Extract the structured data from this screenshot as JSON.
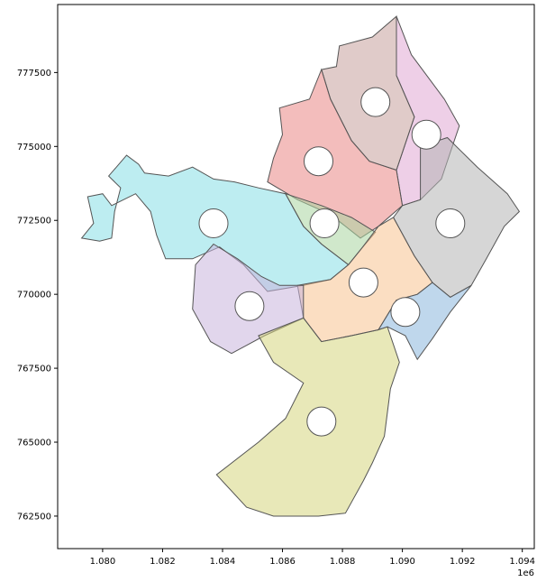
{
  "chart_data": {
    "type": "map",
    "x_axis": {
      "ticks": [
        1.08,
        1.082,
        1.084,
        1.086,
        1.088,
        1.09,
        1.092,
        1.094
      ],
      "tick_labels": [
        "1.080",
        "1.082",
        "1.084",
        "1.086",
        "1.088",
        "1.090",
        "1.092",
        "1.094"
      ],
      "range": [
        1.0785,
        1.0944
      ],
      "offset_label": "1e6"
    },
    "y_axis": {
      "ticks": [
        762500,
        765000,
        767500,
        770000,
        772500,
        775000,
        777500
      ],
      "tick_labels": [
        "762500",
        "765000",
        "767500",
        "770000",
        "772500",
        "775000",
        "777500"
      ],
      "range": [
        761400,
        779800
      ]
    },
    "grid": false,
    "regions": [
      {
        "color": "#87dfe6",
        "marker": [
          1083700,
          772400
        ],
        "polygon": [
          [
            1079500,
            773300
          ],
          [
            1079700,
            772400
          ],
          [
            1079300,
            771900
          ],
          [
            1079900,
            771800
          ],
          [
            1080300,
            771900
          ],
          [
            1080400,
            772800
          ],
          [
            1080600,
            773600
          ],
          [
            1080200,
            774000
          ],
          [
            1080800,
            774700
          ],
          [
            1081200,
            774400
          ],
          [
            1081400,
            774100
          ],
          [
            1082200,
            774000
          ],
          [
            1083000,
            774300
          ],
          [
            1083700,
            773900
          ],
          [
            1084400,
            773800
          ],
          [
            1085200,
            773600
          ],
          [
            1086100,
            773400
          ],
          [
            1086700,
            772300
          ],
          [
            1087300,
            771700
          ],
          [
            1088200,
            771000
          ],
          [
            1087600,
            770500
          ],
          [
            1086700,
            770300
          ],
          [
            1085500,
            770100
          ],
          [
            1084700,
            771000
          ],
          [
            1083900,
            771600
          ],
          [
            1083000,
            771200
          ],
          [
            1082100,
            771200
          ],
          [
            1081800,
            772000
          ],
          [
            1081600,
            772800
          ],
          [
            1081100,
            773400
          ],
          [
            1080300,
            773000
          ],
          [
            1080000,
            773400
          ]
        ]
      },
      {
        "color": "#e0a8d3",
        "marker": [
          1090800,
          775400
        ],
        "polygon": [
          [
            1089800,
            779400
          ],
          [
            1090300,
            778100
          ],
          [
            1091400,
            776600
          ],
          [
            1091900,
            775700
          ],
          [
            1091600,
            774800
          ],
          [
            1091300,
            773900
          ],
          [
            1090600,
            773200
          ],
          [
            1090000,
            773000
          ],
          [
            1089800,
            774200
          ],
          [
            1090400,
            776000
          ],
          [
            1089800,
            777400
          ]
        ]
      },
      {
        "color": "#c7a09c",
        "marker": [
          1089100,
          776500
        ],
        "polygon": [
          [
            1087900,
            778400
          ],
          [
            1089000,
            778700
          ],
          [
            1089800,
            779400
          ],
          [
            1089800,
            777400
          ],
          [
            1090400,
            776000
          ],
          [
            1089800,
            774200
          ],
          [
            1088900,
            774500
          ],
          [
            1088300,
            775200
          ],
          [
            1087600,
            776600
          ],
          [
            1087300,
            777600
          ],
          [
            1087800,
            777700
          ]
        ]
      },
      {
        "color": "#e98785",
        "marker": [
          1087200,
          774500
        ],
        "polygon": [
          [
            1085900,
            776300
          ],
          [
            1086900,
            776600
          ],
          [
            1087300,
            777600
          ],
          [
            1087600,
            776600
          ],
          [
            1088300,
            775200
          ],
          [
            1088900,
            774500
          ],
          [
            1089800,
            774200
          ],
          [
            1090000,
            773000
          ],
          [
            1089200,
            772300
          ],
          [
            1088600,
            771900
          ],
          [
            1087600,
            772700
          ],
          [
            1086500,
            773200
          ],
          [
            1085500,
            773800
          ],
          [
            1085700,
            774600
          ],
          [
            1086000,
            775400
          ]
        ]
      },
      {
        "color": "#a9d5a0",
        "marker": [
          1087400,
          772400
        ],
        "polygon": [
          [
            1086100,
            773400
          ],
          [
            1087300,
            773000
          ],
          [
            1088300,
            772600
          ],
          [
            1089100,
            772100
          ],
          [
            1088600,
            771500
          ],
          [
            1088200,
            771000
          ],
          [
            1087300,
            771700
          ],
          [
            1086700,
            772300
          ]
        ]
      },
      {
        "color": "#b4b4b4",
        "marker": [
          1091600,
          772400
        ],
        "polygon": [
          [
            1090600,
            775000
          ],
          [
            1091500,
            775300
          ],
          [
            1092500,
            774300
          ],
          [
            1093500,
            773400
          ],
          [
            1093900,
            772800
          ],
          [
            1093400,
            772300
          ],
          [
            1092800,
            771200
          ],
          [
            1092300,
            770300
          ],
          [
            1091600,
            769900
          ],
          [
            1091000,
            770400
          ],
          [
            1090400,
            771300
          ],
          [
            1089700,
            772600
          ],
          [
            1090000,
            773000
          ],
          [
            1090600,
            773200
          ]
        ]
      },
      {
        "color": "#f7c28f",
        "marker": [
          1088700,
          770400
        ],
        "polygon": [
          [
            1088200,
            771000
          ],
          [
            1088600,
            771500
          ],
          [
            1089200,
            772300
          ],
          [
            1089700,
            772600
          ],
          [
            1090400,
            771300
          ],
          [
            1091000,
            770400
          ],
          [
            1090500,
            770000
          ],
          [
            1089800,
            769800
          ],
          [
            1089200,
            768800
          ],
          [
            1088300,
            768600
          ],
          [
            1087300,
            768400
          ],
          [
            1086700,
            769200
          ],
          [
            1086500,
            770300
          ],
          [
            1087600,
            770500
          ]
        ]
      },
      {
        "color": "#8bb7dc",
        "marker": [
          1090100,
          769400
        ],
        "polygon": [
          [
            1089200,
            768800
          ],
          [
            1089800,
            769800
          ],
          [
            1090500,
            770000
          ],
          [
            1091000,
            770400
          ],
          [
            1091600,
            769900
          ],
          [
            1092300,
            770300
          ],
          [
            1091600,
            769400
          ],
          [
            1091000,
            768500
          ],
          [
            1090500,
            767800
          ],
          [
            1090100,
            768600
          ],
          [
            1089500,
            768900
          ]
        ]
      },
      {
        "color": "#c8b4dd",
        "marker": [
          1084900,
          769600
        ],
        "polygon": [
          [
            1083100,
            771000
          ],
          [
            1083700,
            771700
          ],
          [
            1084500,
            771200
          ],
          [
            1085300,
            770600
          ],
          [
            1085900,
            770300
          ],
          [
            1086700,
            770300
          ],
          [
            1086700,
            769200
          ],
          [
            1085400,
            768600
          ],
          [
            1084300,
            768000
          ],
          [
            1083600,
            768400
          ],
          [
            1083000,
            769500
          ]
        ]
      },
      {
        "color": "#d5d57e",
        "marker": [
          1087300,
          765700
        ],
        "polygon": [
          [
            1085200,
            768600
          ],
          [
            1086700,
            769200
          ],
          [
            1087300,
            768400
          ],
          [
            1088300,
            768600
          ],
          [
            1089200,
            768800
          ],
          [
            1089500,
            768900
          ],
          [
            1089900,
            767700
          ],
          [
            1089600,
            766800
          ],
          [
            1089400,
            765200
          ],
          [
            1089000,
            764300
          ],
          [
            1088700,
            763700
          ],
          [
            1088100,
            762600
          ],
          [
            1087200,
            762500
          ],
          [
            1085700,
            762500
          ],
          [
            1084800,
            762800
          ],
          [
            1083800,
            763900
          ],
          [
            1085200,
            765000
          ],
          [
            1086100,
            765800
          ],
          [
            1086700,
            767000
          ],
          [
            1085700,
            767700
          ]
        ]
      }
    ]
  }
}
